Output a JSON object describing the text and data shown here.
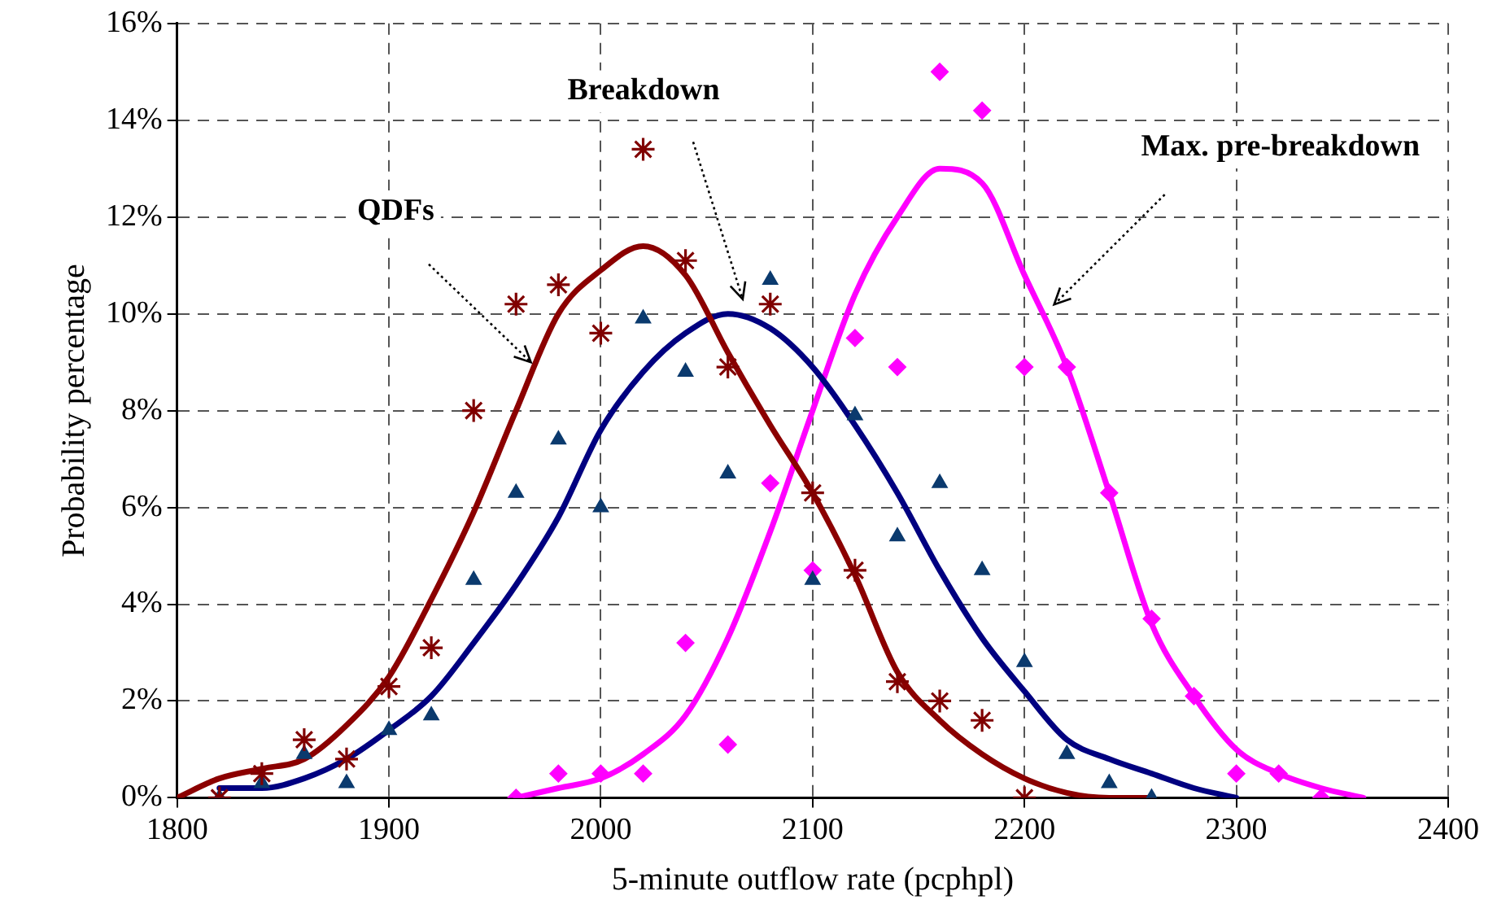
{
  "chart_data": {
    "type": "scatter",
    "xlabel": "5-minute outflow rate (pcphpl)",
    "ylabel": "Probability percentage",
    "xlim": [
      1800,
      2400
    ],
    "xticks": [
      1800,
      1900,
      2000,
      2100,
      2200,
      2300,
      2400
    ],
    "ylim": [
      0,
      16
    ],
    "yticks": [
      {
        "value": 0,
        "label": "0%"
      },
      {
        "value": 2,
        "label": "2%"
      },
      {
        "value": 4,
        "label": "4%"
      },
      {
        "value": 6,
        "label": "6%"
      },
      {
        "value": 8,
        "label": "8%"
      },
      {
        "value": 10,
        "label": "10%"
      },
      {
        "value": 12,
        "label": "12%"
      },
      {
        "value": 14,
        "label": "14%"
      },
      {
        "value": 16,
        "label": "16%"
      }
    ],
    "grid": true,
    "legend": false,
    "series": [
      {
        "type": "scatter",
        "marker": "cross",
        "color": "#800000",
        "x": [
          1820,
          1840,
          1860,
          1880,
          1900,
          1920,
          1940,
          1960,
          1980,
          2000,
          2020,
          2040,
          2060,
          2080,
          2100,
          2120,
          2140,
          2160,
          2180,
          2200
        ],
        "values": [
          0,
          0.5,
          1.2,
          0.8,
          2.3,
          3.1,
          8.0,
          10.2,
          10.6,
          9.6,
          13.4,
          11.1,
          8.9,
          10.2,
          6.3,
          4.7,
          2.4,
          2.0,
          1.6,
          0
        ]
      },
      {
        "type": "scatter",
        "marker": "triangle",
        "color": "#0b3a6e",
        "x": [
          1820,
          1840,
          1860,
          1880,
          1900,
          1920,
          1940,
          1960,
          1980,
          2000,
          2020,
          2040,
          2060,
          2080,
          2100,
          2120,
          2140,
          2160,
          2180,
          2200,
          2220,
          2240,
          2260
        ],
        "values": [
          0,
          0.3,
          0.9,
          0.3,
          1.4,
          1.7,
          4.5,
          6.3,
          7.4,
          6.0,
          9.9,
          8.8,
          6.7,
          10.7,
          4.5,
          7.9,
          5.4,
          6.5,
          4.7,
          2.8,
          0.9,
          0.3,
          0
        ]
      },
      {
        "type": "scatter",
        "marker": "diamond",
        "color": "#ff00ff",
        "x": [
          1960,
          1980,
          2000,
          2020,
          2040,
          2060,
          2080,
          2100,
          2120,
          2140,
          2160,
          2180,
          2200,
          2220,
          2240,
          2260,
          2280,
          2300,
          2320,
          2340
        ],
        "values": [
          0,
          0.5,
          0.5,
          0.5,
          3.2,
          1.1,
          6.5,
          4.7,
          9.5,
          8.9,
          15.0,
          14.2,
          8.9,
          8.9,
          6.3,
          3.7,
          2.1,
          0.5,
          0.5,
          0
        ]
      },
      {
        "type": "line",
        "marker": "none",
        "line_style": "solid",
        "color": "#8b0000",
        "x": [
          1800,
          1820,
          1840,
          1860,
          1880,
          1900,
          1920,
          1940,
          1960,
          1980,
          2000,
          2020,
          2040,
          2060,
          2080,
          2100,
          2120,
          2140,
          2160,
          2180,
          2200,
          2220,
          2240,
          2260
        ],
        "values": [
          0,
          0.4,
          0.6,
          0.8,
          1.5,
          2.5,
          4.1,
          5.9,
          8.0,
          10.0,
          10.9,
          11.4,
          10.8,
          9.2,
          7.7,
          6.3,
          4.6,
          2.6,
          1.6,
          0.9,
          0.4,
          0.1,
          0,
          0
        ]
      },
      {
        "type": "line",
        "marker": "none",
        "line_style": "solid",
        "color": "#000080",
        "x": [
          1820,
          1840,
          1860,
          1880,
          1900,
          1920,
          1940,
          1960,
          1980,
          2000,
          2020,
          2040,
          2060,
          2080,
          2100,
          2120,
          2140,
          2160,
          2180,
          2200,
          2220,
          2240,
          2260,
          2280,
          2300
        ],
        "values": [
          0.2,
          0.2,
          0.4,
          0.8,
          1.4,
          2.1,
          3.2,
          4.4,
          5.8,
          7.6,
          8.8,
          9.6,
          10.0,
          9.7,
          8.9,
          7.7,
          6.3,
          4.7,
          3.3,
          2.2,
          1.2,
          0.8,
          0.5,
          0.2,
          0
        ]
      },
      {
        "type": "line",
        "marker": "none",
        "line_style": "solid",
        "color": "#ff00ff",
        "x": [
          1960,
          1980,
          2000,
          2020,
          2040,
          2060,
          2080,
          2100,
          2120,
          2140,
          2160,
          2180,
          2200,
          2220,
          2240,
          2260,
          2280,
          2300,
          2320,
          2340,
          2360
        ],
        "values": [
          0,
          0.2,
          0.4,
          0.9,
          1.7,
          3.3,
          5.5,
          8.0,
          10.4,
          12.0,
          13.0,
          12.7,
          10.8,
          8.9,
          6.3,
          3.6,
          2.1,
          1.0,
          0.5,
          0.2,
          0
        ]
      }
    ],
    "annotations": [
      {
        "text": "QDFs",
        "x": 1967,
        "y": 9.0
      },
      "Breakdown",
      "Max. pre-breakdown"
    ]
  }
}
